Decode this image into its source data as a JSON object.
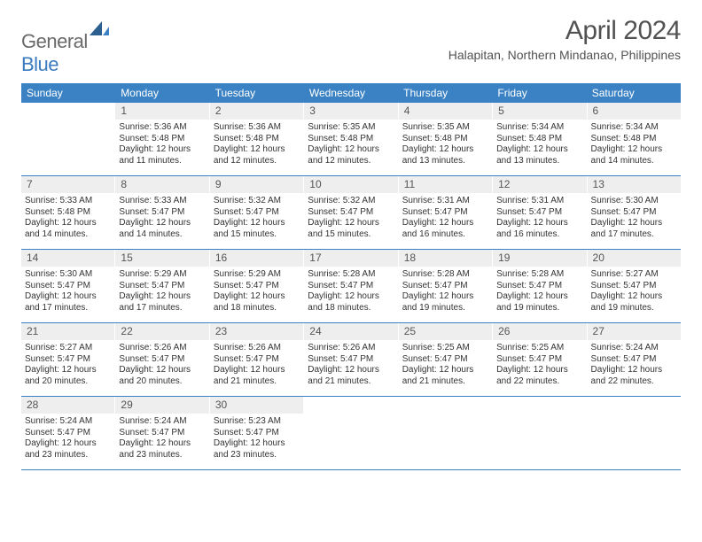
{
  "brand": {
    "general": "General",
    "blue": "Blue"
  },
  "title": "April 2024",
  "subtitle": "Halapitan, Northern Mindanao, Philippines",
  "colors": {
    "header_bg": "#3b82c4",
    "daynum_bg": "#eeeeee",
    "text": "#333333",
    "title_text": "#525252"
  },
  "dayheads": [
    "Sunday",
    "Monday",
    "Tuesday",
    "Wednesday",
    "Thursday",
    "Friday",
    "Saturday"
  ],
  "weeks": [
    [
      {
        "empty": true
      },
      {
        "n": "1",
        "sr": "Sunrise: 5:36 AM",
        "ss": "Sunset: 5:48 PM",
        "d1": "Daylight: 12 hours",
        "d2": "and 11 minutes."
      },
      {
        "n": "2",
        "sr": "Sunrise: 5:36 AM",
        "ss": "Sunset: 5:48 PM",
        "d1": "Daylight: 12 hours",
        "d2": "and 12 minutes."
      },
      {
        "n": "3",
        "sr": "Sunrise: 5:35 AM",
        "ss": "Sunset: 5:48 PM",
        "d1": "Daylight: 12 hours",
        "d2": "and 12 minutes."
      },
      {
        "n": "4",
        "sr": "Sunrise: 5:35 AM",
        "ss": "Sunset: 5:48 PM",
        "d1": "Daylight: 12 hours",
        "d2": "and 13 minutes."
      },
      {
        "n": "5",
        "sr": "Sunrise: 5:34 AM",
        "ss": "Sunset: 5:48 PM",
        "d1": "Daylight: 12 hours",
        "d2": "and 13 minutes."
      },
      {
        "n": "6",
        "sr": "Sunrise: 5:34 AM",
        "ss": "Sunset: 5:48 PM",
        "d1": "Daylight: 12 hours",
        "d2": "and 14 minutes."
      }
    ],
    [
      {
        "n": "7",
        "sr": "Sunrise: 5:33 AM",
        "ss": "Sunset: 5:48 PM",
        "d1": "Daylight: 12 hours",
        "d2": "and 14 minutes."
      },
      {
        "n": "8",
        "sr": "Sunrise: 5:33 AM",
        "ss": "Sunset: 5:47 PM",
        "d1": "Daylight: 12 hours",
        "d2": "and 14 minutes."
      },
      {
        "n": "9",
        "sr": "Sunrise: 5:32 AM",
        "ss": "Sunset: 5:47 PM",
        "d1": "Daylight: 12 hours",
        "d2": "and 15 minutes."
      },
      {
        "n": "10",
        "sr": "Sunrise: 5:32 AM",
        "ss": "Sunset: 5:47 PM",
        "d1": "Daylight: 12 hours",
        "d2": "and 15 minutes."
      },
      {
        "n": "11",
        "sr": "Sunrise: 5:31 AM",
        "ss": "Sunset: 5:47 PM",
        "d1": "Daylight: 12 hours",
        "d2": "and 16 minutes."
      },
      {
        "n": "12",
        "sr": "Sunrise: 5:31 AM",
        "ss": "Sunset: 5:47 PM",
        "d1": "Daylight: 12 hours",
        "d2": "and 16 minutes."
      },
      {
        "n": "13",
        "sr": "Sunrise: 5:30 AM",
        "ss": "Sunset: 5:47 PM",
        "d1": "Daylight: 12 hours",
        "d2": "and 17 minutes."
      }
    ],
    [
      {
        "n": "14",
        "sr": "Sunrise: 5:30 AM",
        "ss": "Sunset: 5:47 PM",
        "d1": "Daylight: 12 hours",
        "d2": "and 17 minutes."
      },
      {
        "n": "15",
        "sr": "Sunrise: 5:29 AM",
        "ss": "Sunset: 5:47 PM",
        "d1": "Daylight: 12 hours",
        "d2": "and 17 minutes."
      },
      {
        "n": "16",
        "sr": "Sunrise: 5:29 AM",
        "ss": "Sunset: 5:47 PM",
        "d1": "Daylight: 12 hours",
        "d2": "and 18 minutes."
      },
      {
        "n": "17",
        "sr": "Sunrise: 5:28 AM",
        "ss": "Sunset: 5:47 PM",
        "d1": "Daylight: 12 hours",
        "d2": "and 18 minutes."
      },
      {
        "n": "18",
        "sr": "Sunrise: 5:28 AM",
        "ss": "Sunset: 5:47 PM",
        "d1": "Daylight: 12 hours",
        "d2": "and 19 minutes."
      },
      {
        "n": "19",
        "sr": "Sunrise: 5:28 AM",
        "ss": "Sunset: 5:47 PM",
        "d1": "Daylight: 12 hours",
        "d2": "and 19 minutes."
      },
      {
        "n": "20",
        "sr": "Sunrise: 5:27 AM",
        "ss": "Sunset: 5:47 PM",
        "d1": "Daylight: 12 hours",
        "d2": "and 19 minutes."
      }
    ],
    [
      {
        "n": "21",
        "sr": "Sunrise: 5:27 AM",
        "ss": "Sunset: 5:47 PM",
        "d1": "Daylight: 12 hours",
        "d2": "and 20 minutes."
      },
      {
        "n": "22",
        "sr": "Sunrise: 5:26 AM",
        "ss": "Sunset: 5:47 PM",
        "d1": "Daylight: 12 hours",
        "d2": "and 20 minutes."
      },
      {
        "n": "23",
        "sr": "Sunrise: 5:26 AM",
        "ss": "Sunset: 5:47 PM",
        "d1": "Daylight: 12 hours",
        "d2": "and 21 minutes."
      },
      {
        "n": "24",
        "sr": "Sunrise: 5:26 AM",
        "ss": "Sunset: 5:47 PM",
        "d1": "Daylight: 12 hours",
        "d2": "and 21 minutes."
      },
      {
        "n": "25",
        "sr": "Sunrise: 5:25 AM",
        "ss": "Sunset: 5:47 PM",
        "d1": "Daylight: 12 hours",
        "d2": "and 21 minutes."
      },
      {
        "n": "26",
        "sr": "Sunrise: 5:25 AM",
        "ss": "Sunset: 5:47 PM",
        "d1": "Daylight: 12 hours",
        "d2": "and 22 minutes."
      },
      {
        "n": "27",
        "sr": "Sunrise: 5:24 AM",
        "ss": "Sunset: 5:47 PM",
        "d1": "Daylight: 12 hours",
        "d2": "and 22 minutes."
      }
    ],
    [
      {
        "n": "28",
        "sr": "Sunrise: 5:24 AM",
        "ss": "Sunset: 5:47 PM",
        "d1": "Daylight: 12 hours",
        "d2": "and 23 minutes."
      },
      {
        "n": "29",
        "sr": "Sunrise: 5:24 AM",
        "ss": "Sunset: 5:47 PM",
        "d1": "Daylight: 12 hours",
        "d2": "and 23 minutes."
      },
      {
        "n": "30",
        "sr": "Sunrise: 5:23 AM",
        "ss": "Sunset: 5:47 PM",
        "d1": "Daylight: 12 hours",
        "d2": "and 23 minutes."
      },
      {
        "empty": true
      },
      {
        "empty": true
      },
      {
        "empty": true
      },
      {
        "empty": true
      }
    ]
  ]
}
